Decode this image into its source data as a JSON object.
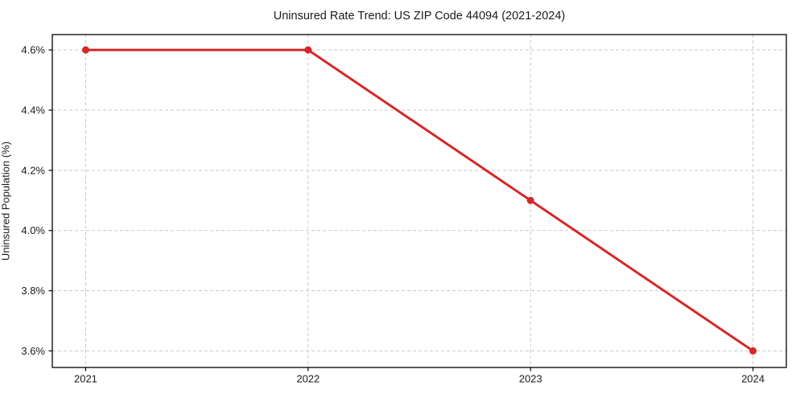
{
  "page": {
    "background_color": "#ffffff"
  },
  "chart_data": {
    "type": "line",
    "title": "Uninsured Rate Trend: US ZIP Code 44094 (2021-2024)",
    "xlabel": "",
    "ylabel": "Uninsured Population (%)",
    "x": [
      2021,
      2022,
      2023,
      2024
    ],
    "series": [
      {
        "name": "uninsured-rate",
        "color": "#d62728",
        "values": [
          4.6,
          4.6,
          4.1,
          3.6
        ]
      }
    ],
    "xtick_labels": [
      "2021",
      "2022",
      "2023",
      "2024"
    ],
    "ytick_values": [
      3.6,
      3.8,
      4.0,
      4.2,
      4.4,
      4.6
    ],
    "ytick_labels": [
      "3.6%",
      "3.8%",
      "4.0%",
      "4.2%",
      "4.4%",
      "4.6%"
    ],
    "xlim": [
      2020.85,
      2024.15
    ],
    "ylim": [
      3.545,
      4.651
    ],
    "grid": true,
    "grid_style": "dashed",
    "grid_color": "#c9c9c9",
    "axis_color": "#000000",
    "text_color": "#1a1a1a",
    "legend_position": "none",
    "marker": "circle",
    "line_width": 3,
    "marker_radius": 4.5
  }
}
